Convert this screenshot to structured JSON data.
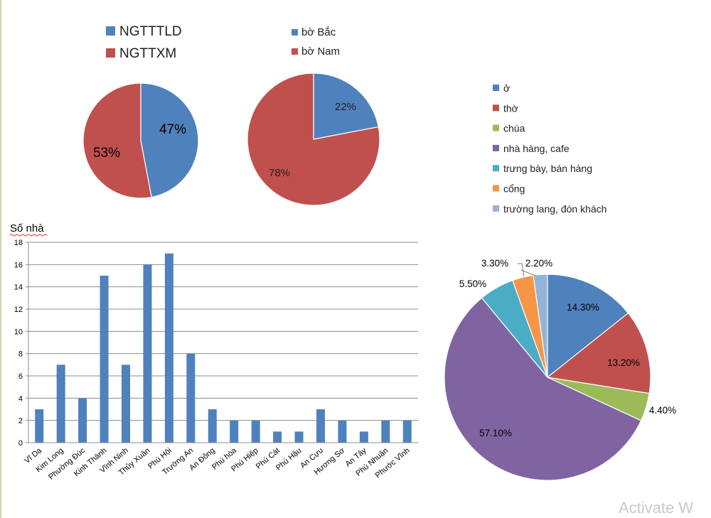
{
  "chart_data": [
    {
      "type": "pie",
      "legend": "top-left",
      "labels": [
        "NGTTTLD",
        "NGTTXM"
      ],
      "values": [
        47,
        53
      ],
      "data_labels": [
        "47%",
        "53%"
      ],
      "colors": [
        "#4f81bd",
        "#c0504d"
      ]
    },
    {
      "type": "pie",
      "legend": "top",
      "labels": [
        "bờ Bắc",
        "bờ Nam"
      ],
      "values": [
        22,
        78
      ],
      "data_labels": [
        "22%",
        "78%"
      ],
      "colors": [
        "#4f81bd",
        "#c0504d"
      ]
    },
    {
      "type": "bar",
      "ylabel": "Số nhà",
      "ylim": [
        0,
        18
      ],
      "yticks": [
        "0",
        "2",
        "4",
        "6",
        "8",
        "10",
        "12",
        "14",
        "16",
        "18"
      ],
      "grid": true,
      "categories": [
        "Vĩ Dạ",
        "Kim Long",
        "Phường Đúc",
        "Kinh Thành",
        "Vĩnh Ninh",
        "Thủy Xuân",
        "Phú Hội",
        "Trường An",
        "An Đông",
        "Phú hòa",
        "Phú Hiệp",
        "Phú Cát",
        "Phú Hậu",
        "An Cựu",
        "Hương Sơ",
        "An Tây",
        "Phú Nhuận",
        "Phước Vĩnh"
      ],
      "values": [
        3,
        7,
        4,
        15,
        7,
        16,
        17,
        8,
        3,
        2,
        2,
        1,
        1,
        3,
        2,
        1,
        2,
        2
      ],
      "color": "#4f81bd"
    },
    {
      "type": "pie",
      "legend": "top-right",
      "labels": [
        "ở",
        "thờ",
        "chùa",
        "nhà hàng, cafe",
        "trưng bày, bán hàng",
        "cổng",
        "trường lang, đón khách"
      ],
      "values": [
        14.3,
        13.2,
        4.4,
        57.1,
        5.5,
        3.3,
        2.2
      ],
      "data_labels": [
        "14.30%",
        "13.20%",
        "4.40%",
        "57.10%",
        "5.50%",
        "3.30%",
        "2.20%"
      ],
      "colors": [
        "#4f81bd",
        "#c0504d",
        "#9bbb59",
        "#8064a2",
        "#4bacc6",
        "#f79646",
        "#95b3d7"
      ]
    }
  ],
  "watermark": "Activate W"
}
